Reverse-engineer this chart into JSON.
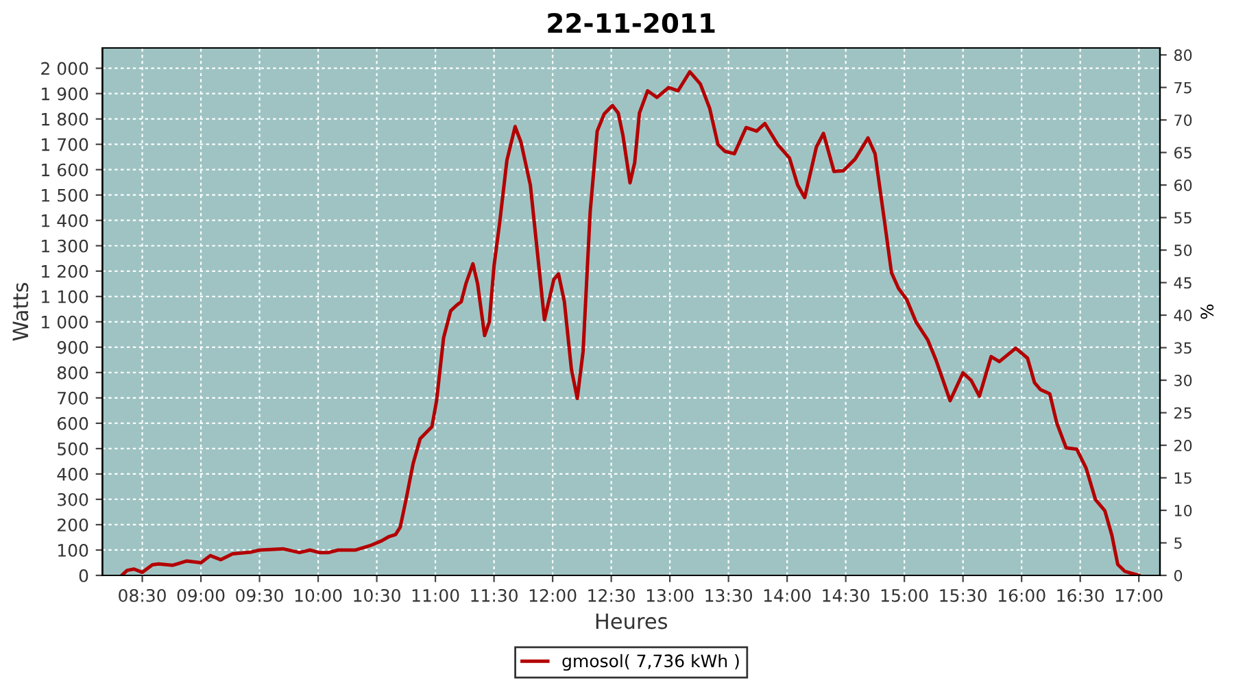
{
  "chart_data": {
    "type": "line",
    "title": "22-11-2011",
    "xlabel": "Heures",
    "ylabel": "Watts",
    "y2label": "%",
    "series": [
      {
        "name": "gmosol( 7,736 kWh )",
        "color": "#b30000",
        "x": [
          8.324,
          8.371,
          8.43,
          8.5,
          8.586,
          8.64,
          8.76,
          8.88,
          9.0,
          9.08,
          9.17,
          9.27,
          9.43,
          9.5,
          9.7,
          9.84,
          9.93,
          10.01,
          10.09,
          10.17,
          10.32,
          10.44,
          10.54,
          10.6,
          10.66,
          10.7,
          10.75,
          10.81,
          10.87,
          10.97,
          11.01,
          11.07,
          11.13,
          11.18,
          11.22,
          11.26,
          11.32,
          11.36,
          11.42,
          11.46,
          11.5,
          11.55,
          11.61,
          11.68,
          11.73,
          11.81,
          11.87,
          11.93,
          12.01,
          12.05,
          12.1,
          12.16,
          12.21,
          12.26,
          12.32,
          12.38,
          12.44,
          12.51,
          12.56,
          12.6,
          12.66,
          12.7,
          12.74,
          12.81,
          12.89,
          12.99,
          13.07,
          13.17,
          13.26,
          13.34,
          13.41,
          13.47,
          13.55,
          13.65,
          13.74,
          13.81,
          13.92,
          14.02,
          14.09,
          14.15,
          14.25,
          14.31,
          14.4,
          14.48,
          14.58,
          14.69,
          14.75,
          14.83,
          14.89,
          14.95,
          15.02,
          15.1,
          15.2,
          15.27,
          15.39,
          15.5,
          15.57,
          15.64,
          15.74,
          15.81,
          15.95,
          16.05,
          16.11,
          16.16,
          16.24,
          16.3,
          16.38,
          16.47,
          16.55,
          16.63,
          16.71,
          16.77,
          16.82,
          16.88,
          16.97,
          17.0
        ],
        "values": [
          0,
          20,
          25,
          12,
          42,
          45,
          40,
          57,
          50,
          78,
          62,
          85,
          92,
          100,
          105,
          90,
          100,
          90,
          90,
          100,
          100,
          117,
          136,
          152,
          161,
          190,
          300,
          441,
          539,
          586,
          689,
          937,
          1043,
          1065,
          1079,
          1150,
          1229,
          1150,
          946,
          1000,
          1220,
          1398,
          1637,
          1770,
          1708,
          1539,
          1274,
          1008,
          1167,
          1189,
          1079,
          813,
          698,
          884,
          1433,
          1752,
          1820,
          1853,
          1823,
          1734,
          1548,
          1628,
          1823,
          1911,
          1885,
          1924,
          1911,
          1986,
          1938,
          1841,
          1699,
          1672,
          1663,
          1766,
          1752,
          1782,
          1699,
          1646,
          1539,
          1490,
          1690,
          1743,
          1593,
          1596,
          1642,
          1725,
          1663,
          1398,
          1194,
          1132,
          1088,
          999,
          928,
          849,
          689,
          799,
          769,
          707,
          863,
          843,
          896,
          857,
          760,
          733,
          716,
          601,
          503,
          498,
          423,
          299,
          255,
          158,
          43,
          16,
          4,
          0
        ]
      }
    ],
    "xlim": [
      8.16,
      17.18
    ],
    "xticks": [
      {
        "value": 8.5,
        "label": "08:30"
      },
      {
        "value": 9.0,
        "label": "09:00"
      },
      {
        "value": 9.5,
        "label": "09:30"
      },
      {
        "value": 10.0,
        "label": "10:00"
      },
      {
        "value": 10.5,
        "label": "10:30"
      },
      {
        "value": 11.0,
        "label": "11:00"
      },
      {
        "value": 11.5,
        "label": "11:30"
      },
      {
        "value": 12.0,
        "label": "12:00"
      },
      {
        "value": 12.5,
        "label": "12:30"
      },
      {
        "value": 13.0,
        "label": "13:00"
      },
      {
        "value": 13.5,
        "label": "13:30"
      },
      {
        "value": 14.0,
        "label": "14:00"
      },
      {
        "value": 14.5,
        "label": "14:30"
      },
      {
        "value": 15.0,
        "label": "15:00"
      },
      {
        "value": 15.5,
        "label": "15:30"
      },
      {
        "value": 16.0,
        "label": "16:00"
      },
      {
        "value": 16.5,
        "label": "16:30"
      },
      {
        "value": 17.0,
        "label": "17:00"
      }
    ],
    "ylim": [
      0,
      2080
    ],
    "yticks": [
      0,
      100,
      200,
      300,
      400,
      500,
      600,
      700,
      800,
      900,
      {
        "value": 1000,
        "label": "1 000"
      },
      {
        "value": 1100,
        "label": "1 100"
      },
      {
        "value": 1200,
        "label": "1 200"
      },
      {
        "value": 1300,
        "label": "1 300"
      },
      {
        "value": 1400,
        "label": "1 400"
      },
      {
        "value": 1500,
        "label": "1 500"
      },
      {
        "value": 1600,
        "label": "1 600"
      },
      {
        "value": 1700,
        "label": "1 700"
      },
      {
        "value": 1800,
        "label": "1 800"
      },
      {
        "value": 1900,
        "label": "1 900"
      },
      {
        "value": 2000,
        "label": "2 000"
      }
    ],
    "y2lim": [
      0,
      81.07
    ],
    "y2ticks": [
      0,
      5,
      10,
      15,
      20,
      25,
      30,
      35,
      40,
      45,
      50,
      55,
      60,
      65,
      70,
      75,
      80
    ],
    "grid": true,
    "legend": "bottom",
    "marker": "none",
    "line_style": "solid"
  }
}
